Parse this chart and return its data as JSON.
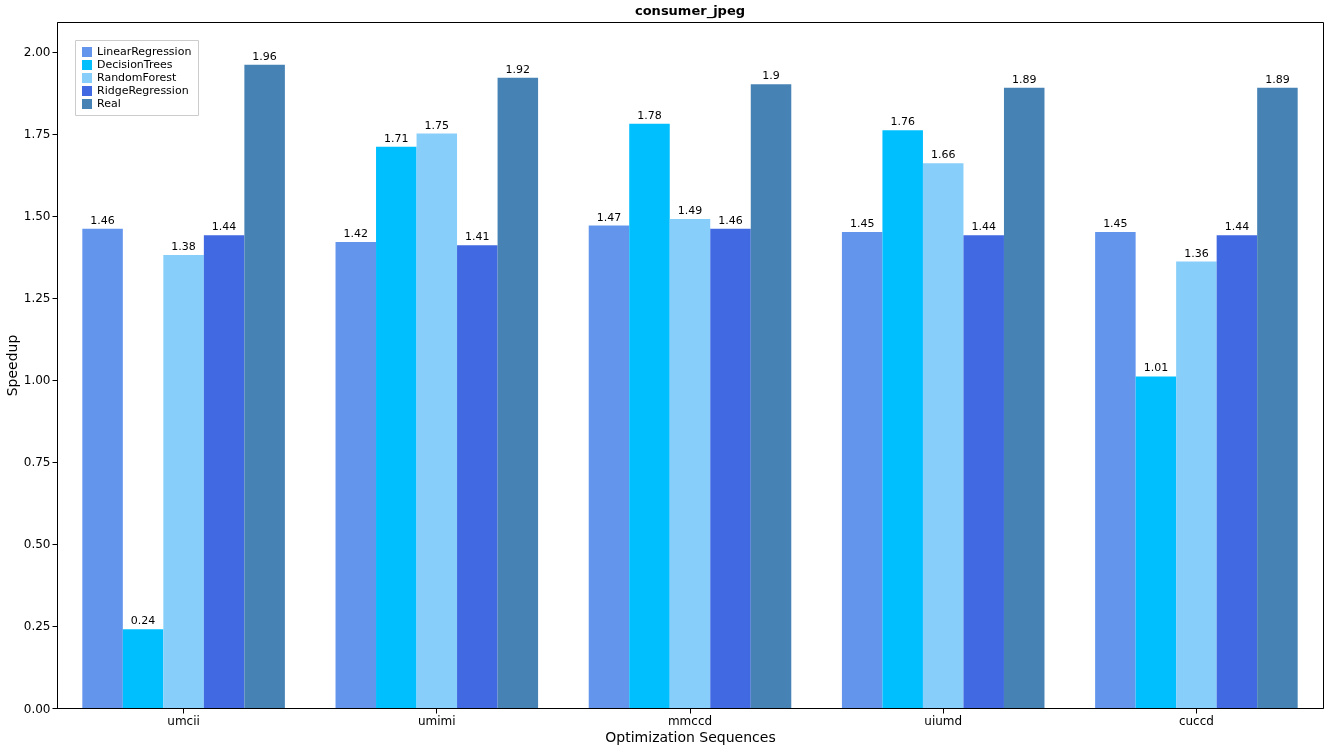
{
  "chart_data": {
    "type": "bar",
    "title": "consumer_jpeg",
    "xlabel": "Optimization Sequences",
    "ylabel": "Speedup",
    "categories": [
      "umcii",
      "umimi",
      "mmccd",
      "uiumd",
      "cuccd"
    ],
    "series": [
      {
        "name": "LinearRegression",
        "color": "#6495ed",
        "values": [
          1.46,
          1.42,
          1.47,
          1.45,
          1.45
        ]
      },
      {
        "name": "DecisionTrees",
        "color": "#00bfff",
        "values": [
          0.24,
          1.71,
          1.78,
          1.76,
          1.01
        ]
      },
      {
        "name": "RandomForest",
        "color": "#87cefa",
        "values": [
          1.38,
          1.75,
          1.49,
          1.66,
          1.36
        ]
      },
      {
        "name": "RidgeRegression",
        "color": "#4169e1",
        "values": [
          1.44,
          1.41,
          1.46,
          1.44,
          1.44
        ]
      },
      {
        "name": "Real",
        "color": "#4682b4",
        "values": [
          1.96,
          1.92,
          1.9,
          1.89,
          1.89
        ]
      }
    ],
    "ylim": [
      0,
      2.09
    ],
    "yticks": [
      {
        "value": 0,
        "label": "0.00"
      },
      0.25,
      {
        "value": 0.5,
        "label": "0.50"
      },
      0.75,
      {
        "value": 1,
        "label": "1.00"
      },
      1.25,
      {
        "value": 1.5,
        "label": "1.50"
      },
      1.75,
      {
        "value": 2,
        "label": "2.00"
      }
    ],
    "data_labels": true,
    "legend": "top left",
    "grid": false
  }
}
